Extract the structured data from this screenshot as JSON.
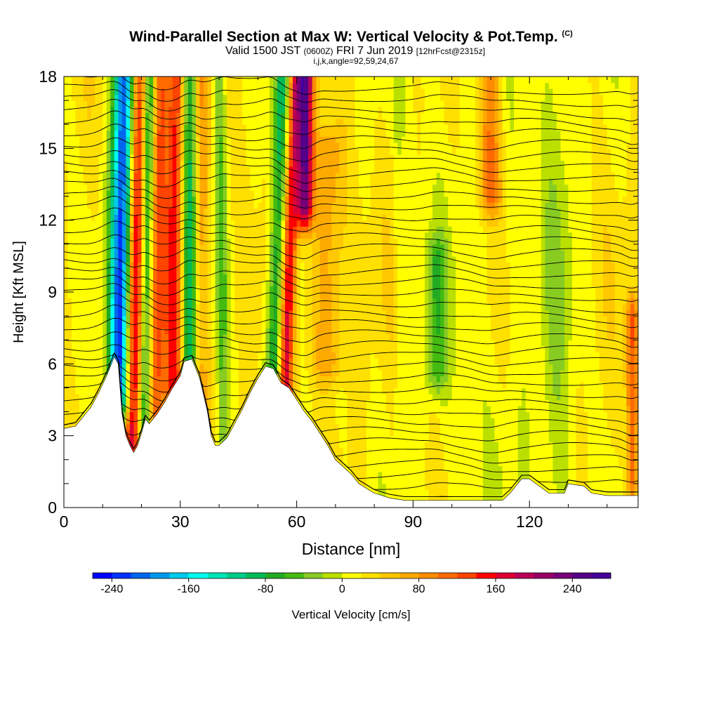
{
  "header": {
    "title": "Wind-Parallel Section at Max W: Vertical Velocity & Pot.Temp.",
    "copyright": "(C)",
    "valid_prefix": "Valid 1500 JST",
    "valid_utc": "(0600Z)",
    "valid_date": "FRI 7 Jun 2019",
    "forecast": "[12hrFcst@2315z]",
    "indices": "i,j,k,angle=92,59,24,67"
  },
  "chart_data": {
    "type": "heatmap",
    "xlabel": "Distance [nm]",
    "ylabel": "Height [Kft MSL]",
    "xlim": [
      0,
      148
    ],
    "ylim": [
      0,
      18
    ],
    "x_ticks": [
      0,
      30,
      60,
      90,
      120
    ],
    "y_ticks": [
      0,
      3,
      6,
      9,
      12,
      15,
      18
    ],
    "colorbar": {
      "label": "Vertical Velocity [cm/s]",
      "range": [
        -260,
        280
      ],
      "step": 20,
      "tick_values": [
        -240,
        -160,
        -80,
        0,
        80,
        160,
        240
      ],
      "tick_labels": [
        "-240",
        "-160",
        "-80",
        "0",
        "80",
        "160",
        "240"
      ],
      "colors": [
        "#0000ff",
        "#0033ff",
        "#0066ee",
        "#0099ee",
        "#00ccee",
        "#00ffee",
        "#00e5b8",
        "#00cc88",
        "#00bb55",
        "#22aa22",
        "#44bb11",
        "#88cc22",
        "#bbe000",
        "#ffff00",
        "#ffe000",
        "#ffc800",
        "#ffaa00",
        "#ff8c00",
        "#ff6a00",
        "#ff4400",
        "#ff0000",
        "#dd0033",
        "#bb0055",
        "#990066",
        "#770077",
        "#550088",
        "#440099"
      ]
    },
    "terrain": {
      "x": [
        0,
        3,
        5,
        7,
        9,
        11,
        13,
        14,
        15,
        16,
        17,
        18,
        19,
        20,
        21,
        22,
        24,
        26,
        28,
        30,
        31,
        33,
        35,
        37,
        38,
        39,
        40,
        42,
        44,
        46,
        48,
        50,
        52,
        54,
        56,
        58,
        60,
        62,
        64,
        66,
        68,
        70,
        72,
        74,
        76,
        78,
        80,
        82,
        84,
        86,
        88,
        90,
        95,
        100,
        105,
        110,
        113,
        115,
        118,
        120,
        125,
        129,
        130,
        134,
        136,
        140,
        144,
        148
      ],
      "height": [
        3.3,
        3.4,
        3.8,
        4.2,
        4.8,
        5.5,
        6.3,
        6.0,
        3.9,
        3.0,
        2.6,
        2.3,
        2.6,
        3.1,
        3.7,
        3.5,
        3.9,
        4.4,
        5.0,
        5.5,
        6.1,
        6.2,
        5.4,
        4.0,
        3.0,
        2.6,
        2.6,
        2.9,
        3.5,
        4.1,
        4.8,
        5.4,
        5.9,
        5.8,
        5.2,
        5.0,
        4.5,
        4.0,
        3.6,
        3.1,
        2.6,
        2.0,
        1.7,
        1.4,
        1.0,
        0.8,
        0.6,
        0.5,
        0.4,
        0.35,
        0.3,
        0.3,
        0.3,
        0.3,
        0.3,
        0.3,
        0.3,
        0.6,
        1.2,
        1.2,
        0.6,
        0.6,
        1.0,
        0.9,
        0.6,
        0.5,
        0.5,
        0.5
      ]
    },
    "features": [
      {
        "x": 14,
        "ymin": 4.5,
        "ymax": 18,
        "w": -250,
        "width": 2.8,
        "lean": 0.12
      },
      {
        "x": 17.5,
        "ymin": 2.5,
        "ymax": 18,
        "w": 160,
        "width": 2.2,
        "lean": 0.12
      },
      {
        "x": 20.5,
        "ymin": 2.5,
        "ymax": 18,
        "w": -110,
        "width": 1.6,
        "lean": 0.1
      },
      {
        "x": 24,
        "ymin": 3.5,
        "ymax": 18,
        "w": 100,
        "width": 2.0,
        "lean": 0.05
      },
      {
        "x": 28.5,
        "ymin": 5.0,
        "ymax": 18,
        "w": 130,
        "width": 2.4,
        "lean": 0.04
      },
      {
        "x": 32,
        "ymin": 6.0,
        "ymax": 18,
        "w": -120,
        "width": 2.0,
        "lean": 0.03
      },
      {
        "x": 35.5,
        "ymin": 4.0,
        "ymax": 18,
        "w": 50,
        "width": 2.0,
        "lean": 0.0
      },
      {
        "x": 41,
        "ymin": 2.5,
        "ymax": 18,
        "w": -60,
        "width": 1.5,
        "lean": -0.05
      },
      {
        "x": 54,
        "ymin": 5.5,
        "ymax": 18,
        "w": -110,
        "width": 2.0,
        "lean": 0.18
      },
      {
        "x": 57,
        "ymin": 4.5,
        "ymax": 18,
        "w": 140,
        "width": 1.8,
        "lean": 0.2
      },
      {
        "x": 62,
        "ymin": 12.5,
        "ymax": 18,
        "w": 210,
        "width": 2.0,
        "lean": 0.05
      },
      {
        "x": 68,
        "ymin": 6.0,
        "ymax": 15,
        "w": 60,
        "width": 4.0,
        "lean": 0.0
      },
      {
        "x": 96,
        "ymin": 5.5,
        "ymax": 10.5,
        "w": -60,
        "width": 2.5,
        "lean": 0.0
      },
      {
        "x": 110,
        "ymin": 13.0,
        "ymax": 18,
        "w": 90,
        "width": 3.0,
        "lean": 0.0
      },
      {
        "x": 127,
        "ymin": 0.5,
        "ymax": 18,
        "w": -35,
        "width": 5.0,
        "lean": 0.0
      },
      {
        "x": 146.5,
        "ymin": 1.0,
        "ymax": 8.0,
        "w": 100,
        "width": 1.6,
        "lean": 0.0
      }
    ],
    "contours": {
      "base_heights": [
        0.4,
        0.85,
        1.3,
        1.75,
        2.2,
        2.65,
        3.1,
        3.55,
        4.0,
        4.45,
        4.9,
        5.35,
        5.8,
        6.25,
        6.7,
        7.15,
        7.6,
        8.05,
        8.5,
        8.95,
        9.4,
        9.85,
        10.3,
        10.75,
        11.2,
        11.65,
        12.1,
        12.55,
        13.0,
        13.45,
        13.9,
        14.35,
        14.8,
        15.25,
        15.7,
        16.15,
        16.6,
        17.05,
        17.5,
        17.95
      ]
    }
  },
  "labels": {
    "x_ticks": [
      "0",
      "30",
      "60",
      "90",
      "120"
    ],
    "y_ticks": [
      "0",
      "3",
      "6",
      "9",
      "12",
      "15",
      "18"
    ]
  }
}
